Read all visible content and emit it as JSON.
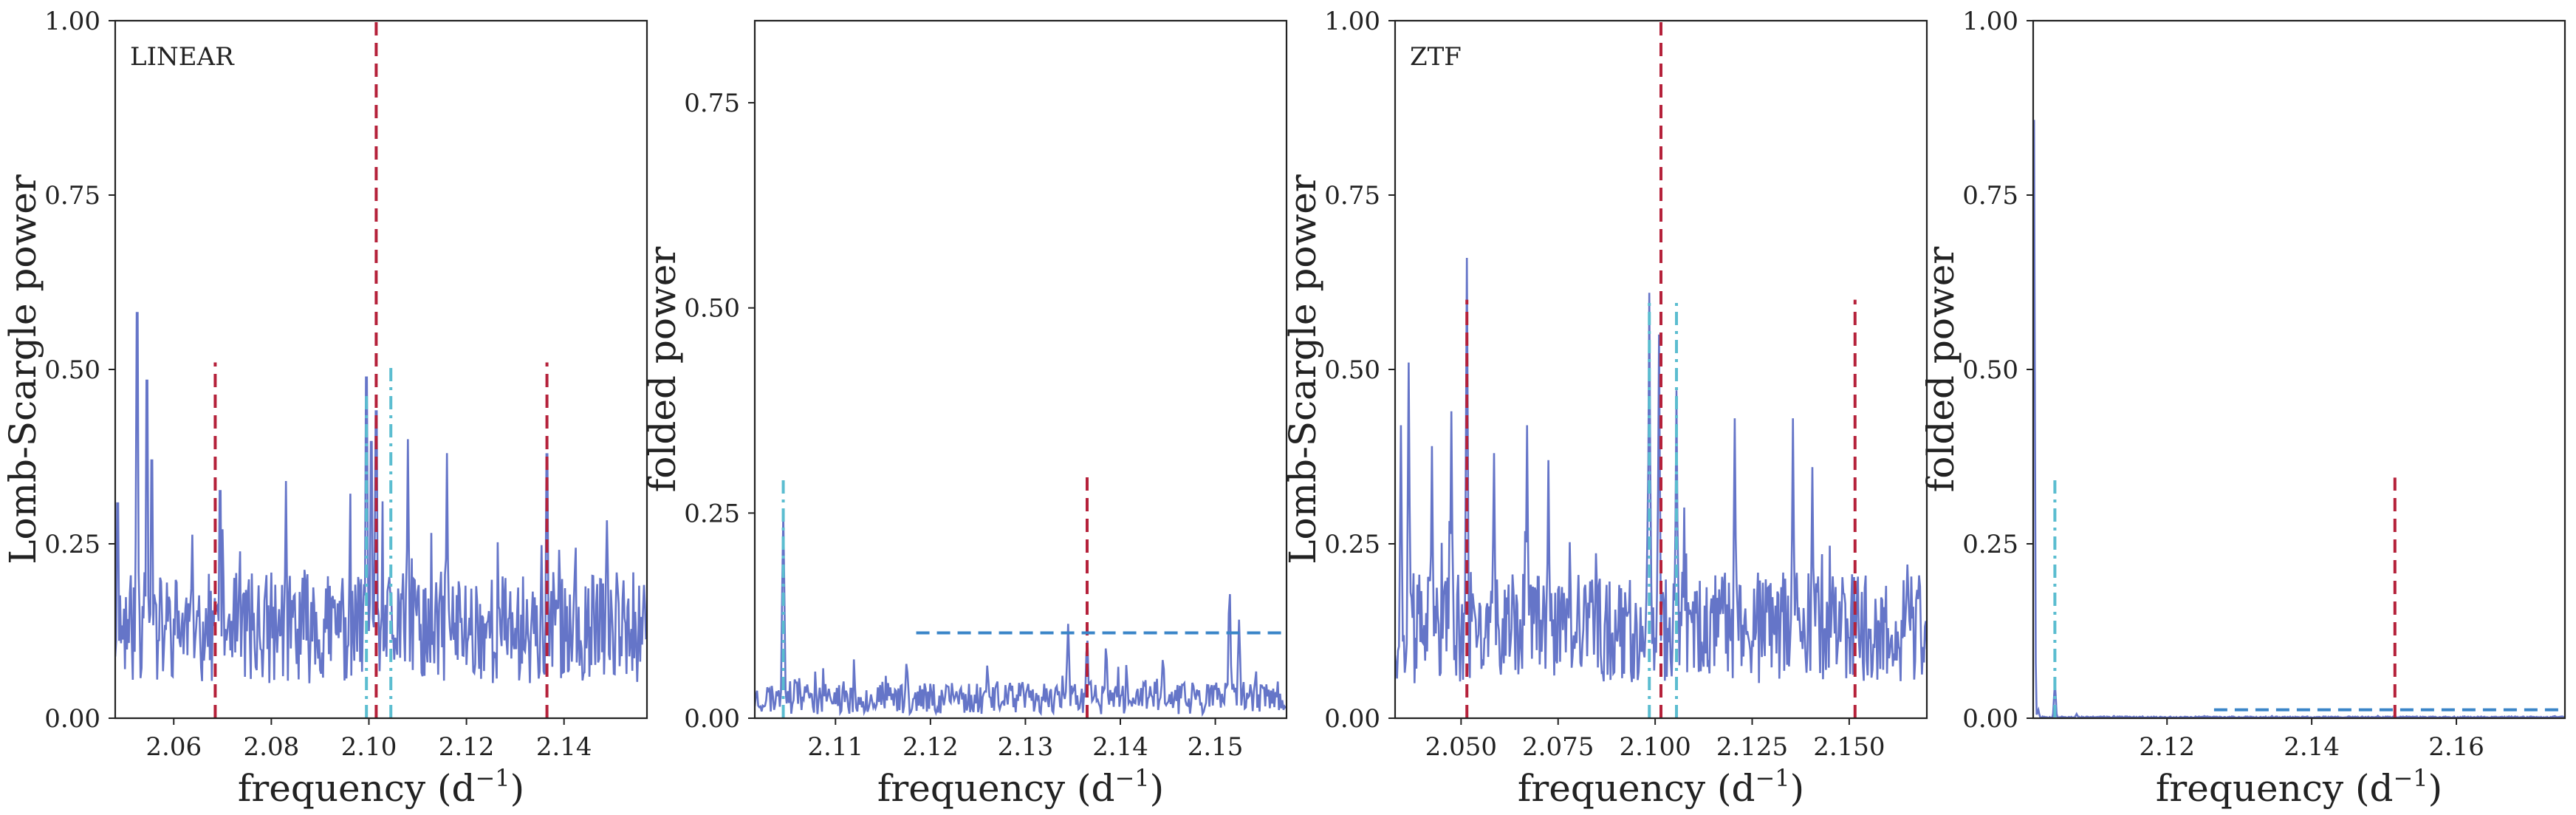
{
  "chart_data": [
    {
      "type": "line",
      "annotation": "LINEAR",
      "xlabel": "frequency (d",
      "xlabel_sup": "−1",
      "xlabel_close": ")",
      "ylabel": "Lomb-Scargle power",
      "xlim": [
        2.048,
        2.157
      ],
      "ylim": [
        0,
        1.0
      ],
      "xticks": [
        2.06,
        2.08,
        2.1,
        2.12,
        2.14
      ],
      "xtick_labels": [
        "2.06",
        "2.08",
        "2.10",
        "2.12",
        "2.14"
      ],
      "yticks": [
        0,
        0.25,
        0.5,
        0.75,
        1.0
      ],
      "ytick_labels": [
        "0.00",
        "0.25",
        "0.50",
        "0.75",
        "1.00"
      ],
      "grid": false,
      "noise": {
        "base": 0.13,
        "amp": 0.08,
        "step": 0.0002,
        "seed": 11
      },
      "peaks": [
        {
          "x": 2.0485,
          "y": 0.35
        },
        {
          "x": 2.0525,
          "y": 0.66
        },
        {
          "x": 2.0545,
          "y": 0.55
        },
        {
          "x": 2.0555,
          "y": 0.42
        },
        {
          "x": 2.0695,
          "y": 0.37
        },
        {
          "x": 2.083,
          "y": 0.34
        },
        {
          "x": 2.0995,
          "y": 0.555
        },
        {
          "x": 2.1015,
          "y": 0.5
        },
        {
          "x": 2.1005,
          "y": 0.45
        },
        {
          "x": 2.108,
          "y": 0.4
        },
        {
          "x": 2.116,
          "y": 0.38
        },
        {
          "x": 2.1365,
          "y": 0.43
        }
      ],
      "lines": [
        {
          "x": 2.1015,
          "y0": 0.0,
          "y1": 1.0,
          "style": "dashed",
          "color": "#b5213a"
        },
        {
          "x": 2.0685,
          "y0": 0.0,
          "y1": 0.51,
          "style": "dashed",
          "color": "#b5213a"
        },
        {
          "x": 2.1365,
          "y0": 0.0,
          "y1": 0.51,
          "style": "dashed",
          "color": "#b5213a"
        },
        {
          "x": 2.0995,
          "y0": 0.0,
          "y1": 0.47,
          "style": "dashdot",
          "color": "#5bbdd0"
        },
        {
          "x": 2.1045,
          "y0": 0.0,
          "y1": 0.51,
          "style": "dashdot",
          "color": "#5bbdd0"
        }
      ],
      "hlines": []
    },
    {
      "type": "line",
      "annotation": "",
      "xlabel": "frequency (d",
      "xlabel_sup": "−1",
      "xlabel_close": ")",
      "ylabel": "folded power",
      "xlim": [
        2.1015,
        2.1575
      ],
      "ylim": [
        0,
        0.85
      ],
      "xticks": [
        2.11,
        2.12,
        2.13,
        2.14,
        2.15
      ],
      "xtick_labels": [
        "2.11",
        "2.12",
        "2.13",
        "2.14",
        "2.15"
      ],
      "yticks": [
        0,
        0.25,
        0.5,
        0.75
      ],
      "ytick_labels": [
        "0.00",
        "0.25",
        "0.50",
        "0.75"
      ],
      "grid": false,
      "noise": {
        "base": 0.025,
        "amp": 0.02,
        "step": 0.00012,
        "seed": 23
      },
      "peaks": [
        {
          "x": 2.1045,
          "y": 0.25
        },
        {
          "x": 2.1175,
          "y": 0.07
        },
        {
          "x": 2.126,
          "y": 0.065
        },
        {
          "x": 2.1345,
          "y": 0.115
        },
        {
          "x": 2.1365,
          "y": 0.1
        },
        {
          "x": 2.1385,
          "y": 0.09
        },
        {
          "x": 2.1445,
          "y": 0.075
        },
        {
          "x": 2.1515,
          "y": 0.16
        },
        {
          "x": 2.1525,
          "y": 0.12
        }
      ],
      "lines": [
        {
          "x": 2.1365,
          "y0": 0.0,
          "y1": 0.295,
          "style": "dashed",
          "color": "#b5213a"
        },
        {
          "x": 2.1045,
          "y0": 0.0,
          "y1": 0.295,
          "style": "dashdot",
          "color": "#5bbdd0"
        }
      ],
      "hlines": [
        {
          "y": 0.104,
          "x0": 2.1185,
          "x1": 2.1575,
          "style": "dashed",
          "color": "#3a85c8"
        }
      ]
    },
    {
      "type": "line",
      "annotation": "ZTF",
      "xlabel": "frequency (d",
      "xlabel_sup": "−1",
      "xlabel_close": ")",
      "ylabel": "Lomb-Scargle power",
      "xlim": [
        2.033,
        2.17
      ],
      "ylim": [
        0,
        1.0
      ],
      "xticks": [
        2.05,
        2.075,
        2.1,
        2.125,
        2.15
      ],
      "xtick_labels": [
        "2.050",
        "2.075",
        "2.100",
        "2.125",
        "2.150"
      ],
      "yticks": [
        0,
        0.25,
        0.5,
        0.75,
        1.0
      ],
      "ytick_labels": [
        "0.00",
        "0.25",
        "0.50",
        "0.75",
        "1.00"
      ],
      "grid": false,
      "noise": {
        "base": 0.13,
        "amp": 0.08,
        "step": 0.00025,
        "seed": 37
      },
      "peaks": [
        {
          "x": 2.0345,
          "y": 0.42
        },
        {
          "x": 2.0365,
          "y": 0.51
        },
        {
          "x": 2.0425,
          "y": 0.39
        },
        {
          "x": 2.0475,
          "y": 0.44
        },
        {
          "x": 2.0515,
          "y": 0.66
        },
        {
          "x": 2.0585,
          "y": 0.38
        },
        {
          "x": 2.067,
          "y": 0.42
        },
        {
          "x": 2.0725,
          "y": 0.37
        },
        {
          "x": 2.0985,
          "y": 0.61
        },
        {
          "x": 2.101,
          "y": 0.55
        },
        {
          "x": 2.1055,
          "y": 0.47
        },
        {
          "x": 2.1205,
          "y": 0.43
        },
        {
          "x": 2.1355,
          "y": 0.43
        },
        {
          "x": 2.1405,
          "y": 0.36
        }
      ],
      "lines": [
        {
          "x": 2.1015,
          "y0": 0.0,
          "y1": 1.0,
          "style": "dashed",
          "color": "#b5213a"
        },
        {
          "x": 2.0515,
          "y0": 0.0,
          "y1": 0.6,
          "style": "dashed",
          "color": "#b5213a"
        },
        {
          "x": 2.1515,
          "y0": 0.0,
          "y1": 0.6,
          "style": "dashed",
          "color": "#b5213a"
        },
        {
          "x": 2.0985,
          "y0": 0.0,
          "y1": 0.6,
          "style": "dashdot",
          "color": "#5bbdd0"
        },
        {
          "x": 2.1055,
          "y0": 0.0,
          "y1": 0.6,
          "style": "dashdot",
          "color": "#5bbdd0"
        }
      ],
      "hlines": []
    },
    {
      "type": "line",
      "annotation": "",
      "xlabel": "frequency (d",
      "xlabel_sup": "−1",
      "xlabel_close": ")",
      "ylabel": "folded power",
      "xlim": [
        2.1015,
        2.175
      ],
      "ylim": [
        0,
        1.0
      ],
      "xticks": [
        2.12,
        2.14,
        2.16
      ],
      "xtick_labels": [
        "2.12",
        "2.14",
        "2.16"
      ],
      "yticks": [
        0,
        0.25,
        0.5,
        0.75,
        1.0
      ],
      "ytick_labels": [
        "0.00",
        "0.25",
        "0.50",
        "0.75",
        "1.00"
      ],
      "grid": false,
      "noise": {
        "base": 0.0015,
        "amp": 0.001,
        "step": 0.00012,
        "seed": 53
      },
      "peaks": [
        {
          "x": 2.1016,
          "y": 0.87
        },
        {
          "x": 2.1045,
          "y": 0.05
        },
        {
          "x": 2.1022,
          "y": 0.012
        },
        {
          "x": 2.1075,
          "y": 0.006
        }
      ],
      "lines": [
        {
          "x": 2.1515,
          "y0": 0.0,
          "y1": 0.345,
          "style": "dashed",
          "color": "#b5213a"
        },
        {
          "x": 2.1045,
          "y0": 0.0,
          "y1": 0.345,
          "style": "dashdot",
          "color": "#5bbdd0"
        }
      ],
      "hlines": [
        {
          "y": 0.012,
          "x0": 2.1265,
          "x1": 2.175,
          "style": "dashed",
          "color": "#3a85c8"
        }
      ]
    }
  ],
  "colors": {
    "series": "#6575c8",
    "axis": "#222222"
  }
}
